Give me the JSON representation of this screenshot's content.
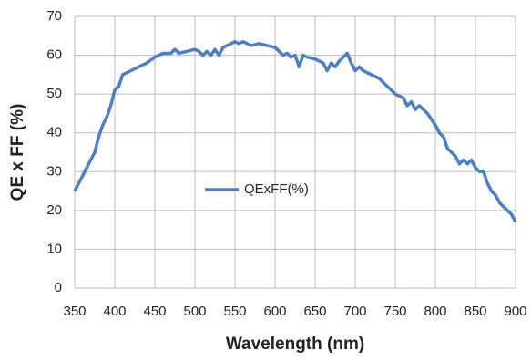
{
  "chart_data": {
    "type": "line",
    "x_label": "Wavelength (nm)",
    "y_label": "QE x FF (%)",
    "x": [
      350,
      360,
      370,
      375,
      380,
      385,
      390,
      395,
      400,
      405,
      410,
      420,
      430,
      440,
      450,
      460,
      470,
      475,
      480,
      490,
      500,
      505,
      510,
      515,
      520,
      525,
      530,
      535,
      540,
      545,
      550,
      555,
      560,
      565,
      570,
      580,
      590,
      600,
      605,
      610,
      615,
      620,
      625,
      630,
      635,
      640,
      650,
      660,
      665,
      670,
      675,
      680,
      685,
      690,
      695,
      700,
      705,
      710,
      720,
      730,
      740,
      750,
      760,
      765,
      770,
      775,
      780,
      790,
      800,
      805,
      810,
      815,
      820,
      825,
      830,
      835,
      840,
      845,
      850,
      855,
      860,
      865,
      870,
      875,
      880,
      885,
      890,
      895,
      900
    ],
    "series": [
      {
        "name": "QExFF(%)",
        "color": "#4f7fc0",
        "values": [
          25,
          29,
          33,
          35,
          39,
          42,
          44,
          47,
          51,
          52,
          55,
          56,
          57,
          58,
          59.5,
          60.5,
          60.5,
          61.5,
          60.5,
          61,
          61.5,
          61,
          60,
          61,
          60,
          61.5,
          60,
          62,
          62.5,
          63,
          63.5,
          63,
          63.5,
          63,
          62.5,
          63,
          62.5,
          62,
          61,
          60,
          60.5,
          59.5,
          60,
          57,
          60,
          59.5,
          59,
          58,
          56,
          58,
          57,
          58.5,
          59.5,
          60.5,
          58,
          56,
          57,
          56,
          55,
          54,
          52,
          50,
          49,
          47,
          48,
          46,
          47,
          45,
          42,
          40,
          39,
          36,
          35,
          34,
          32,
          33,
          32,
          33,
          31,
          30,
          30,
          27,
          25,
          24,
          22,
          21,
          20,
          19,
          17
        ]
      }
    ],
    "xlim": [
      350,
      900
    ],
    "xticks": [
      350,
      400,
      450,
      500,
      550,
      600,
      650,
      700,
      750,
      800,
      850,
      900
    ],
    "ylim": [
      0,
      70
    ],
    "yticks": [
      0,
      10,
      20,
      30,
      40,
      50,
      60,
      70
    ],
    "grid": true
  }
}
